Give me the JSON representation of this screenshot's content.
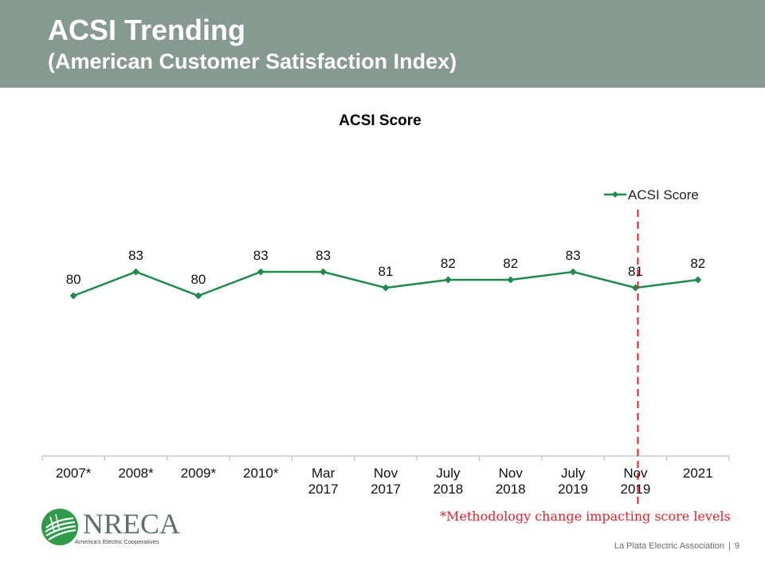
{
  "header": {
    "title": "ACSI Trending",
    "subtitle": "(American Customer Satisfaction Index)"
  },
  "chart_data": {
    "type": "line",
    "title": "ACSI Score",
    "categories": [
      "2007*",
      "2008*",
      "2009*",
      "2010*",
      "Mar 2017",
      "Nov 2017",
      "July 2018",
      "Nov 2018",
      "July 2019",
      "Nov 2019",
      "2021"
    ],
    "series": [
      {
        "name": "ACSI Score",
        "values": [
          80,
          83,
          80,
          83,
          83,
          81,
          82,
          82,
          83,
          81,
          82
        ],
        "color": "#1e8a4c"
      }
    ],
    "data_labels": true,
    "legend_position": "top-right",
    "grid": false,
    "reference_line": {
      "after_category": "Nov 2019",
      "style": "dashed",
      "color": "#e0232b"
    }
  },
  "footnote": "*Methodology change impacting score levels",
  "logo": {
    "text": "NRECA",
    "tagline": "America's Electric Cooperatives"
  },
  "footer": {
    "org": "La Plata Electric Association",
    "separator": "|",
    "page_number": "9"
  }
}
